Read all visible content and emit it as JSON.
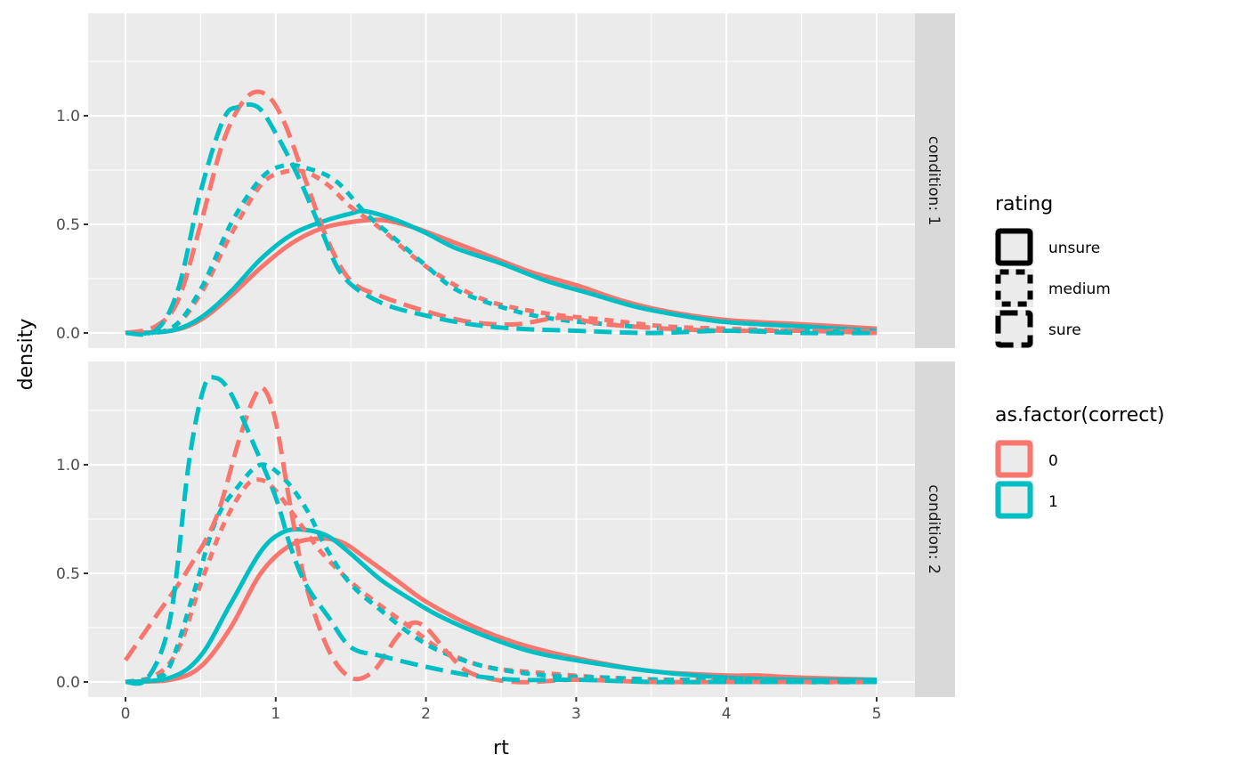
{
  "chart_data": {
    "type": "line",
    "subtype": "density",
    "title": "",
    "xlabel": "rt",
    "ylabel": "density",
    "xlim": [
      -0.25,
      5.25
    ],
    "x_ticks": [
      "0",
      "1",
      "2",
      "3",
      "4",
      "5"
    ],
    "x_tick_values": [
      0,
      1,
      2,
      3,
      4,
      5
    ],
    "y_ticks": [
      "0.0",
      "0.5",
      "1.0"
    ],
    "y_tick_values": [
      0,
      0.5,
      1.0
    ],
    "grid": true,
    "facets": [
      {
        "label": "condition: 1",
        "ylim": [
          -0.07,
          1.47
        ]
      },
      {
        "label": "condition: 2",
        "ylim": [
          -0.07,
          1.47
        ]
      }
    ],
    "legends": [
      {
        "title": "rating",
        "aesthetic": "linetype",
        "placement": "right",
        "entries": [
          {
            "label": "unsure",
            "linetype": "solid"
          },
          {
            "label": "medium",
            "linetype": "dashed"
          },
          {
            "label": "sure",
            "linetype": "longdash"
          }
        ]
      },
      {
        "title": "as.factor(correct)",
        "aesthetic": "colour",
        "placement": "right",
        "entries": [
          {
            "label": "0",
            "color": "#F8766D"
          },
          {
            "label": "1",
            "color": "#00BFC4"
          }
        ]
      }
    ],
    "series": [
      {
        "facet": 0,
        "rating": "unsure",
        "correct": "0",
        "x": [
          0,
          0.3,
          0.5,
          0.7,
          0.9,
          1.1,
          1.3,
          1.5,
          1.7,
          1.9,
          2.1,
          2.4,
          2.7,
          3.0,
          3.3,
          3.6,
          4.0,
          4.5,
          5.0
        ],
        "y": [
          0,
          0.01,
          0.06,
          0.17,
          0.3,
          0.41,
          0.48,
          0.51,
          0.52,
          0.49,
          0.44,
          0.36,
          0.28,
          0.22,
          0.15,
          0.1,
          0.06,
          0.04,
          0.02
        ]
      },
      {
        "facet": 0,
        "rating": "unsure",
        "correct": "1",
        "x": [
          0,
          0.3,
          0.5,
          0.7,
          0.9,
          1.1,
          1.3,
          1.5,
          1.6,
          1.8,
          2.0,
          2.2,
          2.5,
          2.8,
          3.1,
          3.4,
          3.7,
          4.0,
          4.5,
          5.0
        ],
        "y": [
          0,
          0.01,
          0.07,
          0.19,
          0.34,
          0.45,
          0.51,
          0.55,
          0.56,
          0.52,
          0.46,
          0.39,
          0.32,
          0.24,
          0.18,
          0.12,
          0.08,
          0.05,
          0.03,
          0.01
        ]
      },
      {
        "facet": 0,
        "rating": "medium",
        "correct": "0",
        "x": [
          0,
          0.3,
          0.5,
          0.7,
          0.9,
          1.05,
          1.2,
          1.35,
          1.5,
          1.7,
          1.9,
          2.1,
          2.4,
          2.8,
          3.2,
          3.6,
          4.0,
          4.5,
          5.0
        ],
        "y": [
          0,
          0.02,
          0.18,
          0.45,
          0.68,
          0.74,
          0.74,
          0.68,
          0.58,
          0.48,
          0.36,
          0.26,
          0.15,
          0.09,
          0.06,
          0.03,
          0.02,
          0.01,
          0.01
        ]
      },
      {
        "facet": 0,
        "rating": "medium",
        "correct": "1",
        "x": [
          0,
          0.3,
          0.5,
          0.7,
          0.9,
          1.05,
          1.2,
          1.4,
          1.6,
          1.8,
          2.0,
          2.2,
          2.5,
          2.8,
          3.2,
          3.6,
          4.0,
          4.5,
          5.0
        ],
        "y": [
          0,
          0.02,
          0.2,
          0.5,
          0.71,
          0.77,
          0.76,
          0.7,
          0.55,
          0.43,
          0.31,
          0.2,
          0.12,
          0.07,
          0.04,
          0.02,
          0.01,
          0.01,
          0.0
        ]
      },
      {
        "facet": 0,
        "rating": "sure",
        "correct": "0",
        "x": [
          0,
          0.2,
          0.35,
          0.5,
          0.65,
          0.8,
          0.93,
          1.05,
          1.2,
          1.35,
          1.5,
          1.7,
          2.0,
          2.3,
          2.6,
          2.9,
          3.2,
          3.6,
          4.0,
          4.5,
          5.0
        ],
        "y": [
          0,
          0.03,
          0.15,
          0.5,
          0.88,
          1.08,
          1.1,
          0.98,
          0.7,
          0.42,
          0.24,
          0.17,
          0.1,
          0.05,
          0.04,
          0.07,
          0.04,
          0.02,
          0.01,
          0.01,
          0.0
        ]
      },
      {
        "facet": 0,
        "rating": "sure",
        "correct": "1",
        "x": [
          0,
          0.2,
          0.35,
          0.5,
          0.65,
          0.75,
          0.88,
          1.0,
          1.15,
          1.3,
          1.45,
          1.7,
          2.0,
          2.3,
          2.6,
          3.0,
          3.5,
          4.0,
          4.5,
          5.0
        ],
        "y": [
          0,
          0.01,
          0.2,
          0.65,
          0.98,
          1.04,
          1.04,
          0.92,
          0.72,
          0.48,
          0.26,
          0.14,
          0.08,
          0.04,
          0.02,
          0.01,
          0.0,
          0.01,
          0.0,
          0.0
        ]
      },
      {
        "facet": 1,
        "rating": "unsure",
        "correct": "0",
        "x": [
          0,
          0.3,
          0.5,
          0.7,
          0.9,
          1.1,
          1.3,
          1.45,
          1.6,
          1.8,
          2.0,
          2.3,
          2.6,
          3.0,
          3.5,
          4.0,
          4.2,
          4.5,
          5.0
        ],
        "y": [
          0,
          0.01,
          0.07,
          0.25,
          0.5,
          0.63,
          0.66,
          0.64,
          0.57,
          0.47,
          0.37,
          0.26,
          0.18,
          0.11,
          0.05,
          0.03,
          0.03,
          0.02,
          0.01
        ]
      },
      {
        "facet": 1,
        "rating": "unsure",
        "correct": "1",
        "x": [
          0,
          0.3,
          0.5,
          0.7,
          0.9,
          1.05,
          1.2,
          1.35,
          1.5,
          1.7,
          1.9,
          2.1,
          2.4,
          2.7,
          3.0,
          3.5,
          4.0,
          4.5,
          5.0
        ],
        "y": [
          0,
          0.02,
          0.12,
          0.36,
          0.6,
          0.69,
          0.7,
          0.67,
          0.59,
          0.47,
          0.38,
          0.3,
          0.21,
          0.14,
          0.1,
          0.05,
          0.02,
          0.01,
          0.01
        ]
      },
      {
        "facet": 1,
        "rating": "medium",
        "correct": "0",
        "x": [
          0,
          0.2,
          0.35,
          0.5,
          0.65,
          0.8,
          0.9,
          1.0,
          1.15,
          1.3,
          1.5,
          1.7,
          1.9,
          2.1,
          2.4,
          2.8,
          3.2,
          3.6,
          4.0,
          4.5,
          5.0
        ],
        "y": [
          0,
          0.03,
          0.15,
          0.45,
          0.72,
          0.9,
          0.93,
          0.88,
          0.74,
          0.6,
          0.46,
          0.35,
          0.25,
          0.15,
          0.07,
          0.04,
          0.02,
          0.01,
          0.01,
          0.0,
          0.0
        ]
      },
      {
        "facet": 1,
        "rating": "medium",
        "correct": "1",
        "x": [
          0,
          0.2,
          0.3,
          0.45,
          0.6,
          0.75,
          0.9,
          1.05,
          1.2,
          1.35,
          1.5,
          1.7,
          1.9,
          2.1,
          2.4,
          2.8,
          3.2,
          3.6,
          4.0,
          4.5,
          5.0
        ],
        "y": [
          0,
          0.02,
          0.08,
          0.4,
          0.74,
          0.9,
          1.0,
          0.94,
          0.8,
          0.6,
          0.45,
          0.33,
          0.22,
          0.14,
          0.07,
          0.03,
          0.02,
          0.01,
          0.01,
          0.0,
          0.0
        ]
      },
      {
        "facet": 1,
        "rating": "sure",
        "correct": "0",
        "x": [
          0,
          0.2,
          0.4,
          0.6,
          0.75,
          0.85,
          0.92,
          1.0,
          1.1,
          1.2,
          1.35,
          1.5,
          1.65,
          1.8,
          1.9,
          2.0,
          2.15,
          2.3,
          2.6,
          3.0,
          3.5,
          4.0,
          4.5,
          5.0
        ],
        "y": [
          0.1,
          0.3,
          0.5,
          0.75,
          1.1,
          1.3,
          1.35,
          1.2,
          0.8,
          0.45,
          0.15,
          0.02,
          0.05,
          0.2,
          0.27,
          0.25,
          0.13,
          0.04,
          0.0,
          0.01,
          0.0,
          0.0,
          0.0,
          0.0
        ]
      },
      {
        "facet": 1,
        "rating": "sure",
        "correct": "1",
        "x": [
          0,
          0.15,
          0.3,
          0.42,
          0.52,
          0.6,
          0.7,
          0.85,
          1.0,
          1.1,
          1.2,
          1.35,
          1.5,
          1.7,
          2.0,
          2.3,
          2.6,
          3.0,
          3.5,
          4.0,
          4.5,
          5.0
        ],
        "y": [
          0,
          0.02,
          0.3,
          1.0,
          1.35,
          1.4,
          1.33,
          1.1,
          0.85,
          0.62,
          0.45,
          0.3,
          0.16,
          0.12,
          0.07,
          0.03,
          0.01,
          0.01,
          0.0,
          0.0,
          0.0,
          0.0
        ]
      }
    ]
  }
}
